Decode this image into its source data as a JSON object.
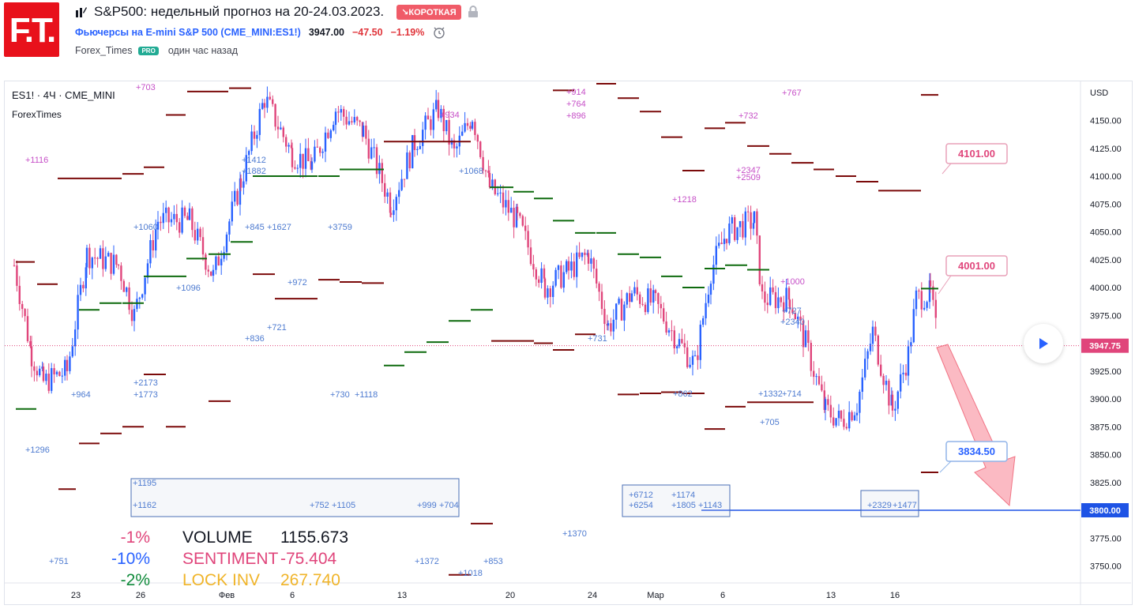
{
  "header": {
    "logo_text": "F.T.",
    "title": "S&P500: недельный прогноз на 20-24.03.2023.",
    "badge": "↘КОРОТКАЯ",
    "symbol_link": "Фьючерсы на E-mini S&P 500 (CME_MINI:ES1!)",
    "price": "3947.00",
    "change": "−47.50",
    "change_pct": "−1.19%",
    "author": "Forex_Times",
    "pro_badge": "PRO",
    "time_ago": "один час назад"
  },
  "chart": {
    "symbol_line": "ES1! · 4Ч · CME_MINI",
    "indicator_name": "ForexTimes",
    "currency": "USD",
    "y_ticks": [
      "4150.00",
      "4125.00",
      "4100.00",
      "4075.00",
      "4050.00",
      "4025.00",
      "4000.00",
      "3975.00",
      "3950.00",
      "3925.00",
      "3900.00",
      "3875.00",
      "3850.00",
      "3825.00",
      "3800.00",
      "3775.00",
      "3750.00"
    ],
    "x_ticks": [
      "23",
      "26",
      "Фев",
      "6",
      "13",
      "20",
      "24",
      "Мар",
      "6",
      "13",
      "16"
    ],
    "last_price_label": "3947.75",
    "level_label": "3800.00",
    "callouts": [
      "4101.00",
      "4001.00",
      "3834.50"
    ],
    "stats": [
      {
        "pct": "-1%",
        "name": "VOLUME",
        "value": "1155.673"
      },
      {
        "pct": "-10%",
        "name": "SENTIMENT",
        "value": "-75.404"
      },
      {
        "pct": "-2%",
        "name": "LOCK INV",
        "value": "267.740"
      }
    ],
    "annotations": [
      "+703",
      "+1116",
      "+1412",
      "+1882",
      "+845",
      "+1627",
      "+3759",
      "+1096",
      "+972",
      "+721",
      "+836",
      "+964",
      "+2173",
      "+1773",
      "+730",
      "+1118",
      "+1296",
      "+1195",
      "+1162",
      "+752",
      "+1105",
      "+999",
      "+704",
      "+751",
      "+1372",
      "+1018",
      "+853",
      "+1370",
      "+914",
      "+764",
      "+896",
      "+1068",
      "+1060",
      "+934",
      "+732",
      "+767",
      "+2347",
      "+2509",
      "+1218",
      "+1332",
      "+714",
      "+705",
      "+2340",
      "+727",
      "+1000",
      "+862",
      "+731",
      "+6712",
      "+6254",
      "+1174",
      "+1805",
      "+1143",
      "+2329",
      "+1477"
    ],
    "colors": {
      "up": "#2962ff",
      "down": "#e0457b",
      "level_line": "#1e53e5",
      "dark_red": "#7b0a0a",
      "green": "#0f6b0f"
    }
  }
}
